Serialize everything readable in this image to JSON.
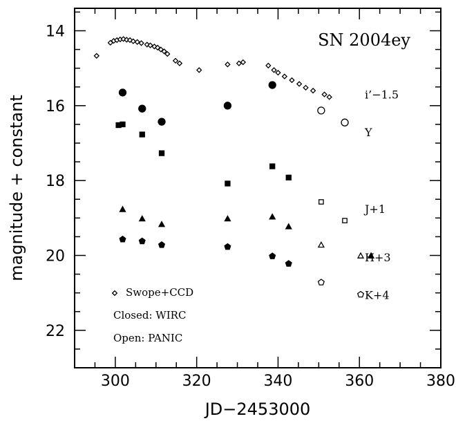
{
  "chart_data": {
    "type": "scatter",
    "title": "SN 2004ey",
    "xlabel": "JD−2453000",
    "ylabel": "magnitude + constant",
    "xlim": [
      290,
      380
    ],
    "ylim": [
      23,
      13.4
    ],
    "y_inverted": true,
    "x_ticks": [
      300,
      320,
      340,
      360,
      380
    ],
    "y_ticks": [
      14,
      16,
      18,
      20,
      22
    ],
    "series_labels": [
      {
        "text": "i’−1.5",
        "y": 15.7
      },
      {
        "text": "Y",
        "y": 16.7
      },
      {
        "text": "J+1",
        "y": 18.75
      },
      {
        "text": "H+3",
        "y": 20.05
      },
      {
        "text": "K+4",
        "y": 21.05
      }
    ],
    "legend": {
      "swope_label": "Swope+CCD",
      "closed_label": "Closed: WIRC",
      "open_label": "Open:  PANIC"
    },
    "series": [
      {
        "instrument": "Swope+CCD",
        "marker": "diamond",
        "fill": "open",
        "points": [
          [
            295.4,
            14.67
          ],
          [
            298.8,
            14.32
          ],
          [
            299.6,
            14.27
          ],
          [
            300.4,
            14.25
          ],
          [
            301.2,
            14.23
          ],
          [
            302.0,
            14.22
          ],
          [
            302.8,
            14.24
          ],
          [
            303.6,
            14.25
          ],
          [
            304.4,
            14.28
          ],
          [
            305.4,
            14.3
          ],
          [
            306.4,
            14.33
          ],
          [
            307.8,
            14.37
          ],
          [
            308.6,
            14.39
          ],
          [
            309.6,
            14.42
          ],
          [
            310.4,
            14.45
          ],
          [
            311.2,
            14.5
          ],
          [
            312.0,
            14.55
          ],
          [
            312.8,
            14.62
          ],
          [
            314.8,
            14.8
          ],
          [
            315.8,
            14.87
          ],
          [
            320.6,
            15.05
          ],
          [
            327.6,
            14.9
          ],
          [
            330.4,
            14.87
          ],
          [
            331.4,
            14.84
          ],
          [
            337.6,
            14.93
          ],
          [
            339.0,
            15.05
          ],
          [
            340.0,
            15.12
          ],
          [
            341.6,
            15.22
          ],
          [
            343.4,
            15.32
          ],
          [
            345.2,
            15.42
          ],
          [
            346.8,
            15.52
          ],
          [
            348.6,
            15.6
          ],
          [
            351.4,
            15.7
          ],
          [
            352.6,
            15.77
          ]
        ]
      },
      {
        "band": "i'-1.5",
        "instrument": "WIRC",
        "marker": "circle",
        "fill": "closed",
        "points": [
          [
            301.8,
            15.65
          ],
          [
            306.6,
            16.08
          ],
          [
            311.4,
            16.43
          ],
          [
            327.6,
            16.0
          ],
          [
            338.6,
            15.45
          ]
        ]
      },
      {
        "band": "i'-1.5",
        "instrument": "PANIC",
        "marker": "circle",
        "fill": "open",
        "points": [
          [
            350.6,
            16.13
          ],
          [
            356.4,
            16.45
          ]
        ]
      },
      {
        "band": "Y",
        "instrument": "WIRC",
        "marker": "square",
        "fill": "closed",
        "points": [
          [
            300.8,
            16.52
          ],
          [
            301.8,
            16.5
          ],
          [
            306.6,
            16.77
          ],
          [
            311.4,
            17.27
          ],
          [
            327.6,
            18.08
          ],
          [
            338.6,
            17.62
          ],
          [
            342.6,
            17.92
          ]
        ]
      },
      {
        "band": "J+1",
        "instrument": "PANIC",
        "marker": "square",
        "fill": "open",
        "points": [
          [
            350.6,
            18.57
          ],
          [
            356.4,
            19.07
          ]
        ]
      },
      {
        "band": "H+3",
        "instrument": "WIRC",
        "marker": "triangle",
        "fill": "closed",
        "points": [
          [
            301.8,
            18.77
          ],
          [
            306.6,
            19.02
          ],
          [
            311.4,
            19.17
          ],
          [
            327.6,
            19.02
          ],
          [
            338.6,
            18.97
          ],
          [
            342.6,
            19.23
          ]
        ]
      },
      {
        "band": "H+3",
        "instrument": "PANIC",
        "marker": "triangle",
        "fill": "open",
        "points": [
          [
            350.6,
            19.72
          ]
        ]
      },
      {
        "band": "K+4",
        "instrument": "WIRC",
        "marker": "pentagon",
        "fill": "closed",
        "points": [
          [
            301.8,
            19.57
          ],
          [
            306.6,
            19.62
          ],
          [
            311.4,
            19.72
          ],
          [
            327.6,
            19.77
          ],
          [
            338.6,
            20.02
          ],
          [
            342.6,
            20.22
          ]
        ]
      },
      {
        "band": "K+4",
        "instrument": "PANIC",
        "marker": "pentagon",
        "fill": "open",
        "points": [
          [
            350.6,
            20.72
          ]
        ]
      }
    ],
    "legend_markers": [
      {
        "marker": "diamond",
        "fill": "open"
      },
      {
        "marker": "triangle",
        "fill": "open"
      },
      {
        "marker": "triangle",
        "fill": "closed"
      },
      {
        "marker": "pentagon",
        "fill": "open"
      }
    ]
  }
}
